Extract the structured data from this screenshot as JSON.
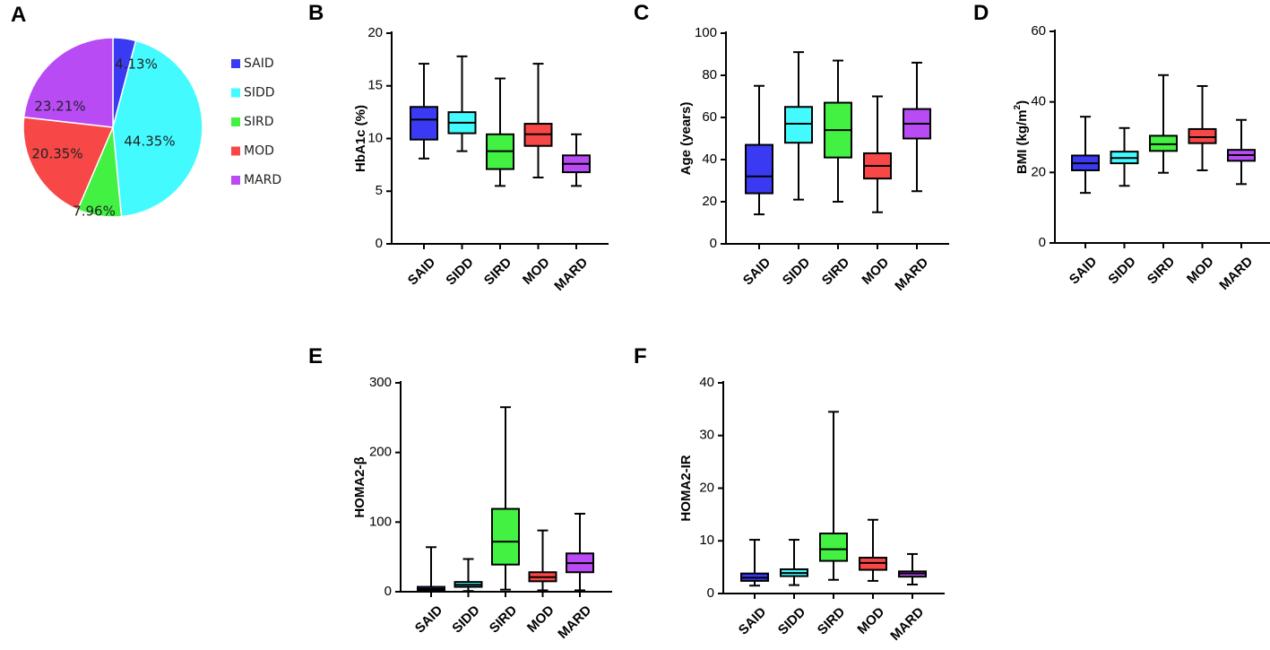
{
  "chart_data": [
    {
      "panel": "A",
      "type": "pie",
      "categories": [
        "SAID",
        "SIDD",
        "SIRD",
        "MOD",
        "MARD"
      ],
      "values": [
        4.13,
        44.35,
        7.96,
        20.35,
        23.21
      ],
      "value_labels": [
        "4.13%",
        "44.35%",
        "7.96%",
        "20.35%",
        "23.21%"
      ],
      "colors": [
        "#3a3af2",
        "#43fbff",
        "#43f143",
        "#f74747",
        "#b94bf5"
      ],
      "legend_position": "right"
    },
    {
      "panel": "B",
      "type": "box",
      "ylabel": "HbA1c (%)",
      "ylim": [
        0,
        20
      ],
      "yticks": [
        0,
        5,
        10,
        15,
        20
      ],
      "categories": [
        "SAID",
        "SIDD",
        "SIRD",
        "MOD",
        "MARD"
      ],
      "boxes": [
        {
          "min": 8.1,
          "q1": 9.9,
          "median": 11.8,
          "q3": 13.0,
          "max": 17.1
        },
        {
          "min": 8.8,
          "q1": 10.5,
          "median": 11.5,
          "q3": 12.5,
          "max": 17.8
        },
        {
          "min": 5.5,
          "q1": 7.1,
          "median": 8.8,
          "q3": 10.4,
          "max": 15.7
        },
        {
          "min": 6.3,
          "q1": 9.3,
          "median": 10.4,
          "q3": 11.4,
          "max": 17.1
        },
        {
          "min": 5.5,
          "q1": 6.8,
          "median": 7.6,
          "q3": 8.4,
          "max": 10.4
        }
      ]
    },
    {
      "panel": "C",
      "type": "box",
      "ylabel": "Age (years)",
      "ylim": [
        0,
        100
      ],
      "yticks": [
        0,
        20,
        40,
        60,
        80,
        100
      ],
      "categories": [
        "SAID",
        "SIDD",
        "SIRD",
        "MOD",
        "MARD"
      ],
      "boxes": [
        {
          "min": 14,
          "q1": 24,
          "median": 32,
          "q3": 47,
          "max": 75
        },
        {
          "min": 21,
          "q1": 48,
          "median": 57,
          "q3": 65,
          "max": 91
        },
        {
          "min": 20,
          "q1": 41,
          "median": 54,
          "q3": 67,
          "max": 87
        },
        {
          "min": 15,
          "q1": 31,
          "median": 37,
          "q3": 43,
          "max": 70
        },
        {
          "min": 25,
          "q1": 50,
          "median": 57,
          "q3": 64,
          "max": 86
        }
      ]
    },
    {
      "panel": "D",
      "type": "box",
      "ylabel": "BMI (kg/m2)",
      "ylabel_main": "BMI (kg/m",
      "ylabel_sup": "2",
      "ylabel_end": ")",
      "ylim": [
        0,
        60
      ],
      "yticks": [
        0,
        20,
        40,
        60
      ],
      "categories": [
        "SAID",
        "SIDD",
        "SIRD",
        "MOD",
        "MARD"
      ],
      "boxes": [
        {
          "min": 14.2,
          "q1": 20.6,
          "median": 22.6,
          "q3": 24.8,
          "max": 35.8
        },
        {
          "min": 16.2,
          "q1": 22.6,
          "median": 24.1,
          "q3": 25.9,
          "max": 32.6
        },
        {
          "min": 19.9,
          "q1": 26.1,
          "median": 28.0,
          "q3": 30.4,
          "max": 47.6
        },
        {
          "min": 20.6,
          "q1": 28.3,
          "median": 30.0,
          "q3": 32.3,
          "max": 44.5
        },
        {
          "min": 16.7,
          "q1": 23.3,
          "median": 24.9,
          "q3": 26.4,
          "max": 34.9
        }
      ]
    },
    {
      "panel": "E",
      "type": "box",
      "ylabel": "HOMA2-β",
      "ylim": [
        0,
        300
      ],
      "yticks": [
        0,
        100,
        200,
        300
      ],
      "categories": [
        "SAID",
        "SIDD",
        "SIRD",
        "MOD",
        "MARD"
      ],
      "boxes": [
        {
          "min": 0,
          "q1": 2,
          "median": 4,
          "q3": 7,
          "max": 64
        },
        {
          "min": 1,
          "q1": 7,
          "median": 10,
          "q3": 14,
          "max": 47
        },
        {
          "min": 3,
          "q1": 39,
          "median": 72,
          "q3": 119,
          "max": 265
        },
        {
          "min": 2,
          "q1": 15,
          "median": 21,
          "q3": 28,
          "max": 88
        },
        {
          "min": 2,
          "q1": 28,
          "median": 41,
          "q3": 55,
          "max": 112
        }
      ]
    },
    {
      "panel": "F",
      "type": "box",
      "ylabel": "HOMA2-IR",
      "ylim": [
        0,
        40
      ],
      "yticks": [
        0,
        10,
        20,
        30,
        40
      ],
      "categories": [
        "SAID",
        "SIDD",
        "SIRD",
        "MOD",
        "MARD"
      ],
      "boxes": [
        {
          "min": 1.5,
          "q1": 2.4,
          "median": 3.0,
          "q3": 3.8,
          "max": 10.2
        },
        {
          "min": 1.6,
          "q1": 3.3,
          "median": 3.9,
          "q3": 4.6,
          "max": 10.2
        },
        {
          "min": 2.6,
          "q1": 6.2,
          "median": 8.4,
          "q3": 11.4,
          "max": 34.5
        },
        {
          "min": 2.4,
          "q1": 4.5,
          "median": 5.8,
          "q3": 6.8,
          "max": 14.0
        },
        {
          "min": 1.7,
          "q1": 3.2,
          "median": 3.8,
          "q3": 4.2,
          "max": 7.5
        }
      ]
    }
  ]
}
